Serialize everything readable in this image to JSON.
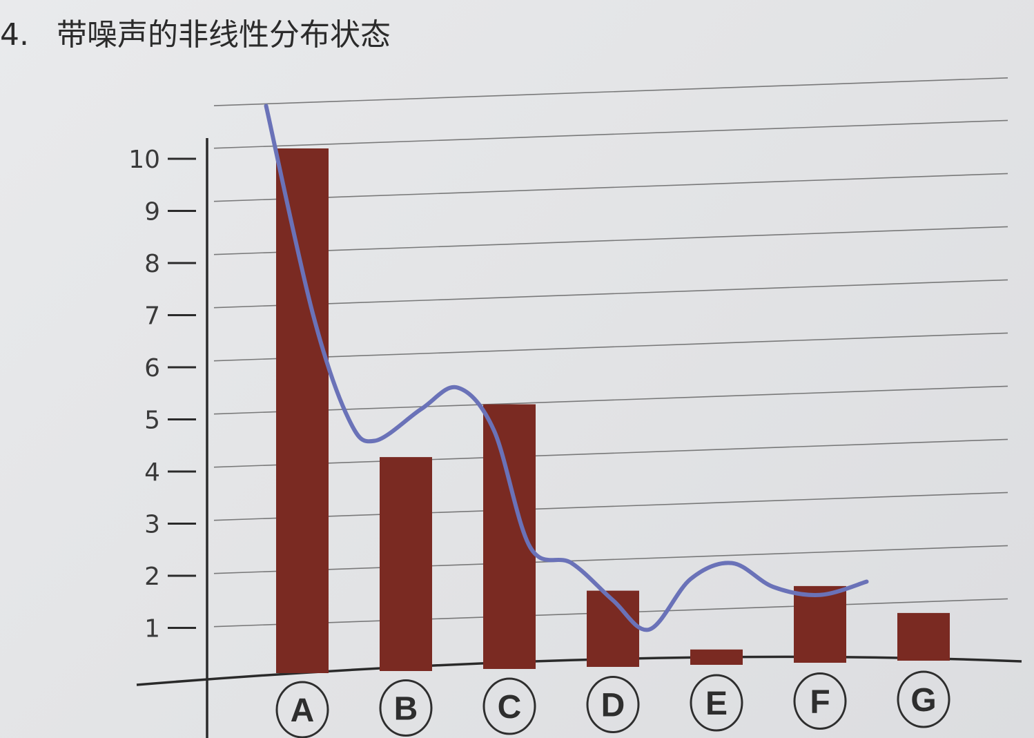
{
  "heading": {
    "number": "4.",
    "title": "带噪声的非线性分布状态"
  },
  "colors": {
    "bar": "#7a2a22",
    "curve": "#6a72b8",
    "grid": "#555555",
    "axis": "#2a2a2a",
    "text": "#2b2b2b"
  },
  "chart_data": {
    "type": "bar",
    "categories": [
      "A",
      "B",
      "C",
      "D",
      "E",
      "F",
      "G"
    ],
    "values": [
      10,
      4.2,
      5.2,
      1.7,
      0.6,
      1.8,
      1.3
    ],
    "overlay_curve": {
      "type": "line",
      "smooth": true,
      "points": [
        {
          "x": -0.35,
          "y": 10.8
        },
        {
          "x": 0.1,
          "y": 6.9
        },
        {
          "x": 0.45,
          "y": 4.9
        },
        {
          "x": 0.7,
          "y": 4.5
        },
        {
          "x": 1.15,
          "y": 5.1
        },
        {
          "x": 1.5,
          "y": 5.5
        },
        {
          "x": 1.85,
          "y": 4.7
        },
        {
          "x": 2.2,
          "y": 2.5
        },
        {
          "x": 2.6,
          "y": 2.2
        },
        {
          "x": 3.0,
          "y": 1.5
        },
        {
          "x": 3.35,
          "y": 0.95
        },
        {
          "x": 3.75,
          "y": 1.9
        },
        {
          "x": 4.15,
          "y": 2.2
        },
        {
          "x": 4.55,
          "y": 1.75
        },
        {
          "x": 5.0,
          "y": 1.6
        },
        {
          "x": 5.45,
          "y": 1.85
        }
      ]
    },
    "yticks": [
      1,
      2,
      3,
      4,
      5,
      6,
      7,
      8,
      9,
      10
    ],
    "ylim": [
      0,
      10.8
    ],
    "grid": true,
    "title": "",
    "xlabel": "",
    "ylabel": ""
  }
}
